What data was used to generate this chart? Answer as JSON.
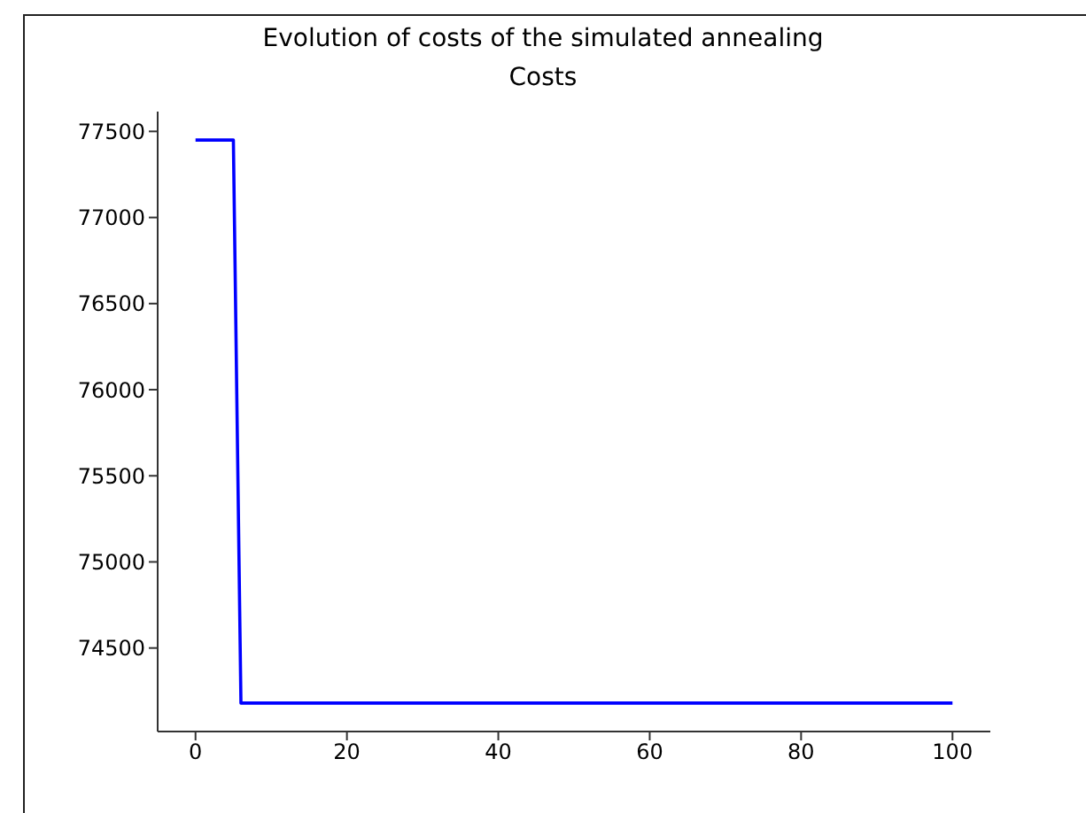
{
  "chart_data": {
    "type": "line",
    "title": "Evolution of costs of the simulated annealing",
    "subtitle": "Costs",
    "x": [
      0,
      5,
      6,
      100
    ],
    "series": [
      {
        "color": "#0000ff",
        "values": [
          77450,
          77450,
          74180,
          74180
        ]
      }
    ],
    "xlim": [
      -5,
      105
    ],
    "xticks": [
      0,
      20,
      40,
      60,
      80,
      100
    ],
    "ylim": [
      74015,
      77615
    ],
    "yticks": [
      74500,
      75000,
      75500,
      76000,
      76500,
      77000,
      77500
    ],
    "grid": false,
    "legend": false
  }
}
